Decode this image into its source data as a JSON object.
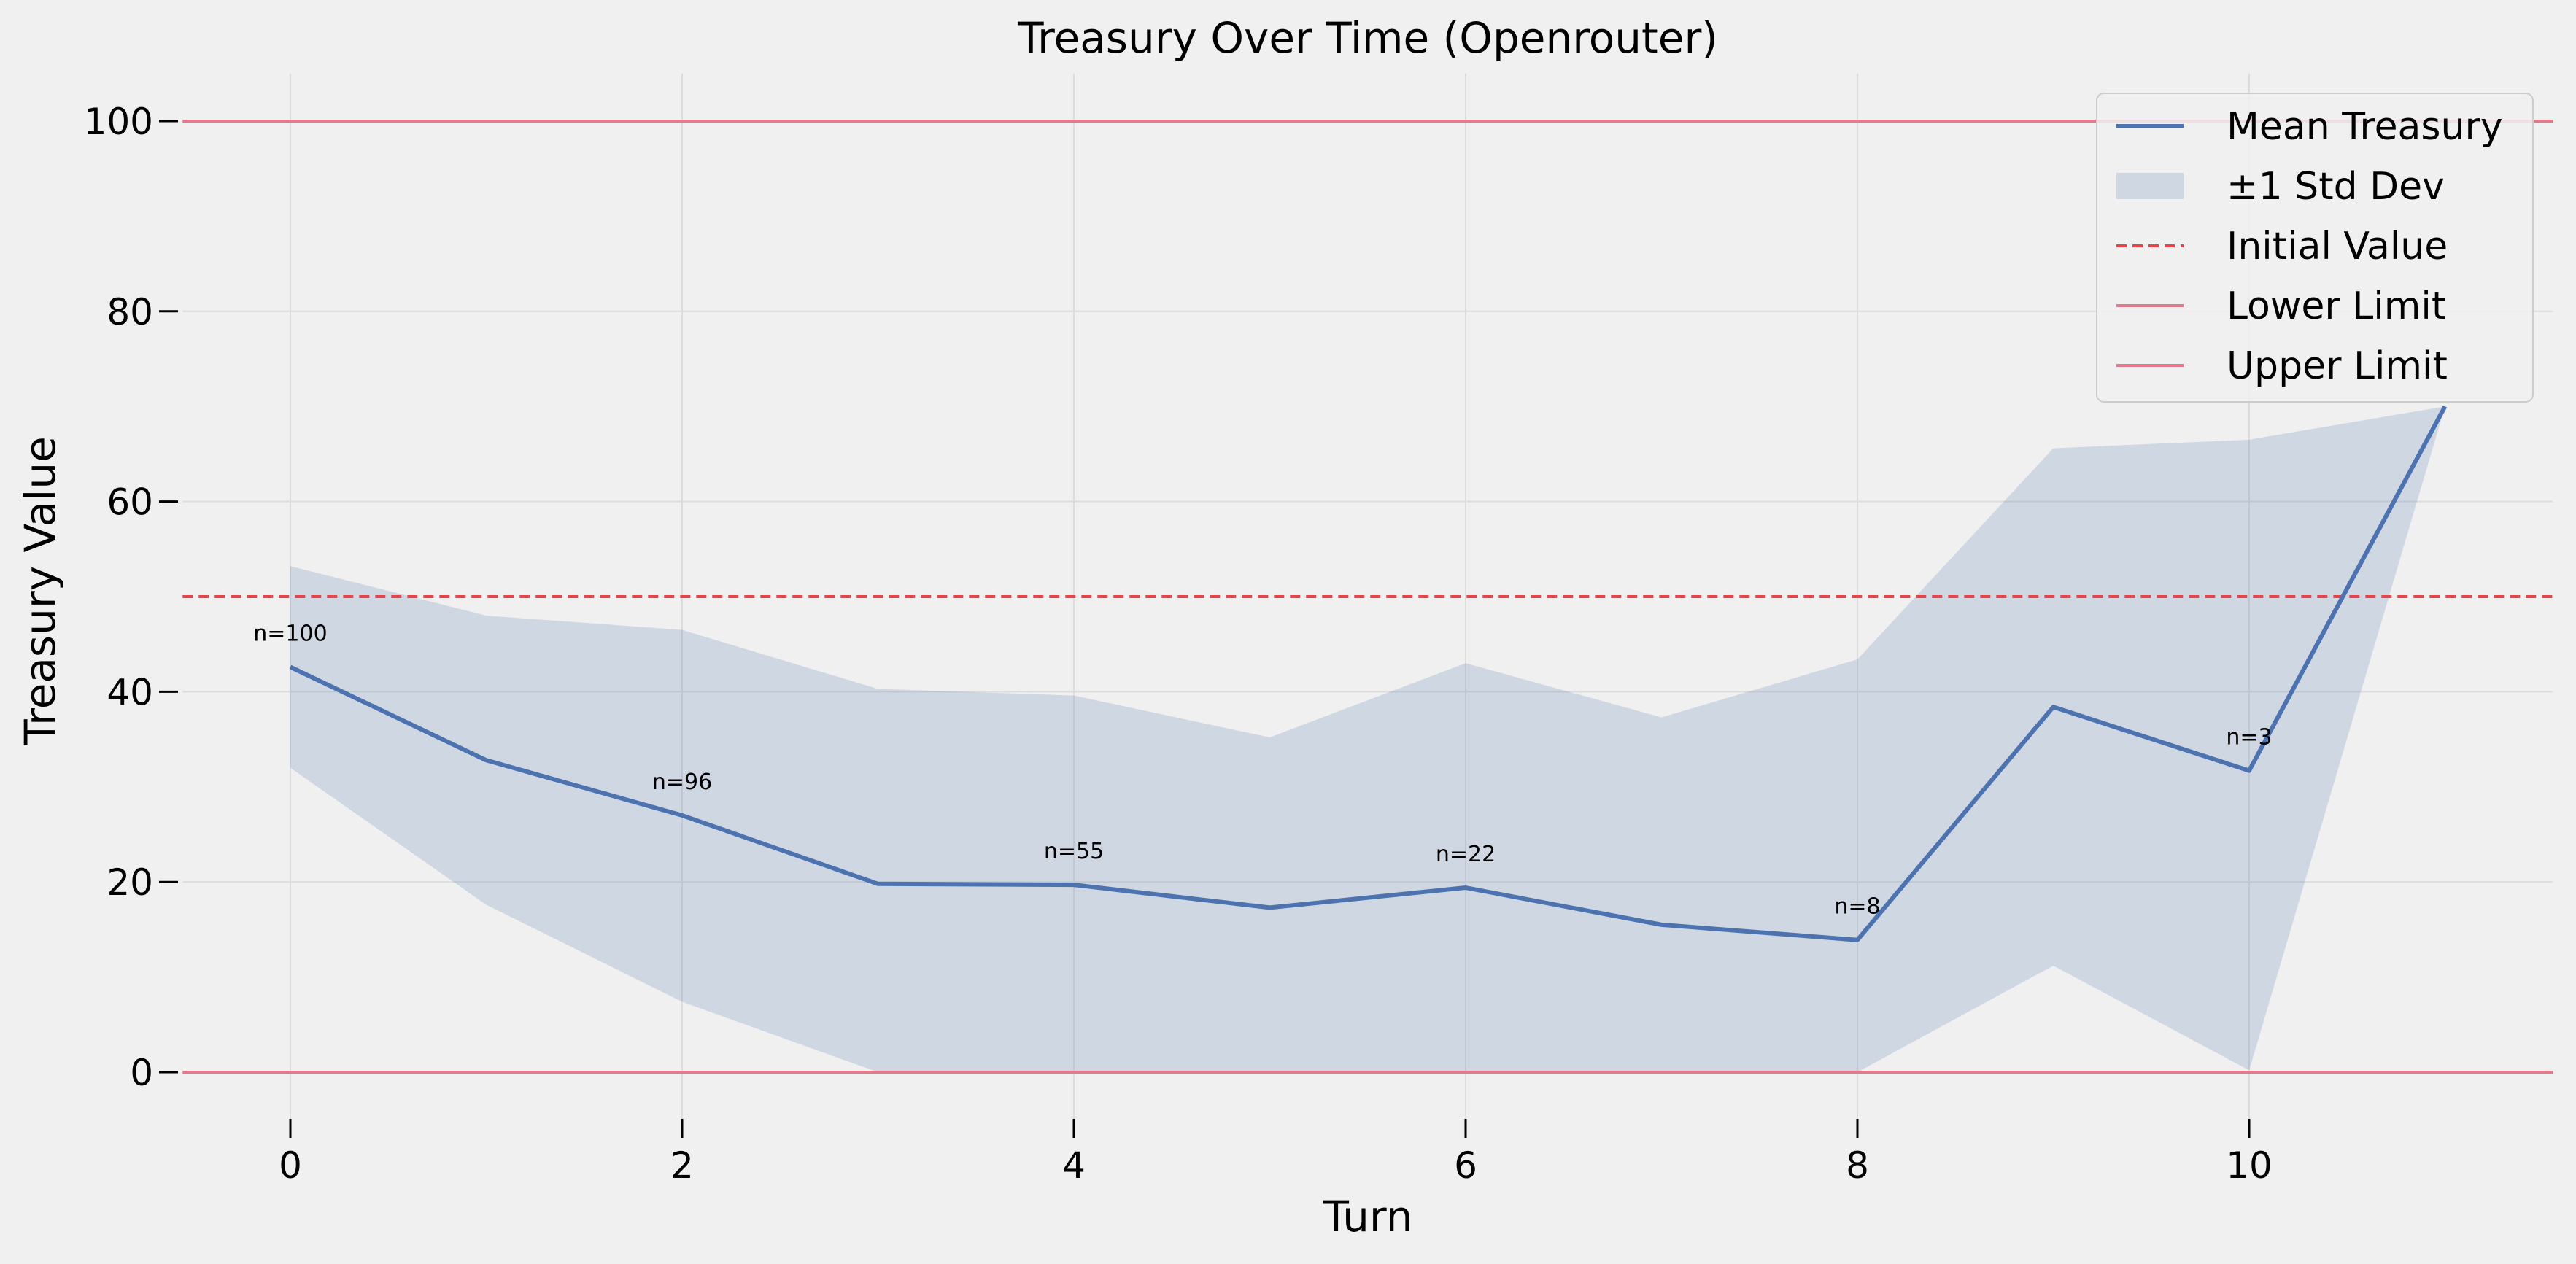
{
  "chart_data": {
    "type": "line",
    "title": "Treasury Over Time (Openrouter)",
    "xlabel": "Turn",
    "ylabel": "Treasury Value",
    "xlim": [
      -0.55,
      11.55
    ],
    "ylim": [
      -5,
      105
    ],
    "xticks": [
      0,
      2,
      4,
      6,
      8,
      10
    ],
    "yticks": [
      0,
      20,
      40,
      60,
      80,
      100
    ],
    "grid": true,
    "legend_position": "top-right",
    "x": [
      0,
      1,
      2,
      3,
      4,
      5,
      6,
      7,
      8,
      9,
      10,
      11
    ],
    "series": [
      {
        "name": "Mean Treasury",
        "kind": "line",
        "color": "#4c72b0",
        "values": [
          42.6,
          32.8,
          27.0,
          19.8,
          19.7,
          17.3,
          19.4,
          15.5,
          13.9,
          38.4,
          31.7,
          70.0
        ]
      },
      {
        "name": "±1 Std Dev",
        "kind": "band",
        "color": "#4c72b0",
        "upper": [
          53.2,
          48.0,
          46.5,
          40.3,
          39.6,
          35.2,
          43.0,
          37.3,
          43.4,
          65.6,
          66.5,
          70.0
        ],
        "lower": [
          32.0,
          17.6,
          7.4,
          0.0,
          0.0,
          0.0,
          0.0,
          0.0,
          0.0,
          11.2,
          0.2,
          70.0
        ]
      },
      {
        "name": "Initial Value",
        "kind": "hline",
        "value": 50,
        "color": "#e8434a",
        "dashed": true
      },
      {
        "name": "Lower Limit",
        "kind": "hline",
        "value": 0,
        "color": "#e07a8c",
        "dashed": false
      },
      {
        "name": "Upper Limit",
        "kind": "hline",
        "value": 100,
        "color": "#e07a8c",
        "dashed": false
      }
    ],
    "annotations": [
      {
        "x": 0,
        "y": 42.6,
        "text": "n=100"
      },
      {
        "x": 2,
        "y": 27.0,
        "text": "n=96"
      },
      {
        "x": 4,
        "y": 19.7,
        "text": "n=55"
      },
      {
        "x": 6,
        "y": 19.4,
        "text": "n=22"
      },
      {
        "x": 8,
        "y": 13.9,
        "text": "n=8"
      },
      {
        "x": 10,
        "y": 31.7,
        "text": "n=3"
      }
    ]
  }
}
